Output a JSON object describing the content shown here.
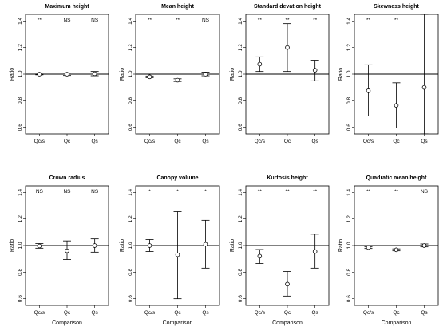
{
  "chart_data": [
    {
      "type": "errorbar",
      "title": "Maximum height",
      "xlabel": "",
      "ylabel": "Ratio",
      "categories": [
        "Qc/s",
        "Qc",
        "Qs"
      ],
      "ylim": [
        0.55,
        1.45
      ],
      "yticks": [
        0.6,
        0.8,
        1.0,
        1.2,
        1.4
      ],
      "reference_line": 1.0,
      "significance": [
        "**",
        "NS",
        "NS"
      ],
      "points": [
        {
          "est": 1.0,
          "lo": 0.995,
          "hi": 1.008
        },
        {
          "est": 1.0,
          "lo": 0.99,
          "hi": 1.008
        },
        {
          "est": 1.003,
          "lo": 0.988,
          "hi": 1.02
        }
      ]
    },
    {
      "type": "errorbar",
      "title": "Mean height",
      "xlabel": "",
      "ylabel": "Ratio",
      "categories": [
        "Qc/s",
        "Qc",
        "Qs"
      ],
      "ylim": [
        0.55,
        1.45
      ],
      "yticks": [
        0.6,
        0.8,
        1.0,
        1.2,
        1.4
      ],
      "reference_line": 1.0,
      "significance": [
        "**",
        "**",
        "NS"
      ],
      "points": [
        {
          "est": 0.98,
          "lo": 0.974,
          "hi": 0.986
        },
        {
          "est": 0.955,
          "lo": 0.945,
          "hi": 0.965
        },
        {
          "est": 1.0,
          "lo": 0.988,
          "hi": 1.015
        }
      ]
    },
    {
      "type": "errorbar",
      "title": "Standard devation height",
      "xlabel": "",
      "ylabel": "Ratio",
      "categories": [
        "Qc/s",
        "Qc",
        "Qs"
      ],
      "ylim": [
        0.55,
        1.45
      ],
      "yticks": [
        0.6,
        0.8,
        1.0,
        1.2,
        1.4
      ],
      "reference_line": 1.0,
      "significance": [
        "**",
        "**",
        "**"
      ],
      "points": [
        {
          "est": 1.075,
          "lo": 1.02,
          "hi": 1.13
        },
        {
          "est": 1.2,
          "lo": 1.02,
          "hi": 1.38
        },
        {
          "est": 1.03,
          "lo": 0.95,
          "hi": 1.105
        }
      ]
    },
    {
      "type": "errorbar",
      "title": "Skewness height",
      "xlabel": "",
      "ylabel": "Ratio",
      "categories": [
        "Qc/s",
        "Qc",
        "Qs"
      ],
      "ylim": [
        0.55,
        1.45
      ],
      "yticks": [
        0.6,
        0.8,
        1.0,
        1.2,
        1.4
      ],
      "reference_line": 1.0,
      "significance": [
        "**",
        "**",
        ""
      ],
      "points": [
        {
          "est": 0.875,
          "lo": 0.685,
          "hi": 1.07
        },
        {
          "est": 0.765,
          "lo": 0.595,
          "hi": 0.935
        },
        {
          "est": 0.9,
          "lo": 0.55,
          "hi": 1.45
        }
      ]
    },
    {
      "type": "errorbar",
      "title": "Crown radius",
      "xlabel": "Comparison",
      "ylabel": "Ratio",
      "categories": [
        "Qc/s",
        "Qc",
        "Qs"
      ],
      "ylim": [
        0.55,
        1.45
      ],
      "yticks": [
        0.6,
        0.8,
        1.0,
        1.2,
        1.4
      ],
      "reference_line": 1.0,
      "significance": [
        "NS",
        "NS",
        "NS"
      ],
      "points": [
        {
          "est": 0.997,
          "lo": 0.98,
          "hi": 1.015
        },
        {
          "est": 0.96,
          "lo": 0.895,
          "hi": 1.035
        },
        {
          "est": 1.0,
          "lo": 0.95,
          "hi": 1.05
        }
      ]
    },
    {
      "type": "errorbar",
      "title": "Canopy volume",
      "xlabel": "Comparison",
      "ylabel": "Ratio",
      "categories": [
        "Qc/s",
        "Qc",
        "Qs"
      ],
      "ylim": [
        0.55,
        1.45
      ],
      "yticks": [
        0.6,
        0.8,
        1.0,
        1.2,
        1.4
      ],
      "reference_line": 1.0,
      "significance": [
        "*",
        "*",
        "*"
      ],
      "points": [
        {
          "est": 1.0,
          "lo": 0.955,
          "hi": 1.045
        },
        {
          "est": 0.93,
          "lo": 0.6,
          "hi": 1.255
        },
        {
          "est": 1.01,
          "lo": 0.83,
          "hi": 1.19
        }
      ]
    },
    {
      "type": "errorbar",
      "title": "Kurtosis height",
      "xlabel": "Comparison",
      "ylabel": "Ratio",
      "categories": [
        "Qc/s",
        "Qc",
        "Qs"
      ],
      "ylim": [
        0.55,
        1.45
      ],
      "yticks": [
        0.6,
        0.8,
        1.0,
        1.2,
        1.4
      ],
      "reference_line": 1.0,
      "significance": [
        "**",
        "**",
        "**"
      ],
      "points": [
        {
          "est": 0.92,
          "lo": 0.865,
          "hi": 0.97
        },
        {
          "est": 0.71,
          "lo": 0.62,
          "hi": 0.805
        },
        {
          "est": 0.955,
          "lo": 0.83,
          "hi": 1.085
        }
      ]
    },
    {
      "type": "errorbar",
      "title": "Quadratic mean height",
      "xlabel": "Comparison",
      "ylabel": "Ratio",
      "categories": [
        "Qc/s",
        "Qc",
        "Qs"
      ],
      "ylim": [
        0.55,
        1.45
      ],
      "yticks": [
        0.6,
        0.8,
        1.0,
        1.2,
        1.4
      ],
      "reference_line": 1.0,
      "significance": [
        "**",
        "**",
        "NS"
      ],
      "points": [
        {
          "est": 0.985,
          "lo": 0.978,
          "hi": 0.99
        },
        {
          "est": 0.968,
          "lo": 0.96,
          "hi": 0.975
        },
        {
          "est": 1.0,
          "lo": 0.99,
          "hi": 1.012
        }
      ]
    }
  ]
}
